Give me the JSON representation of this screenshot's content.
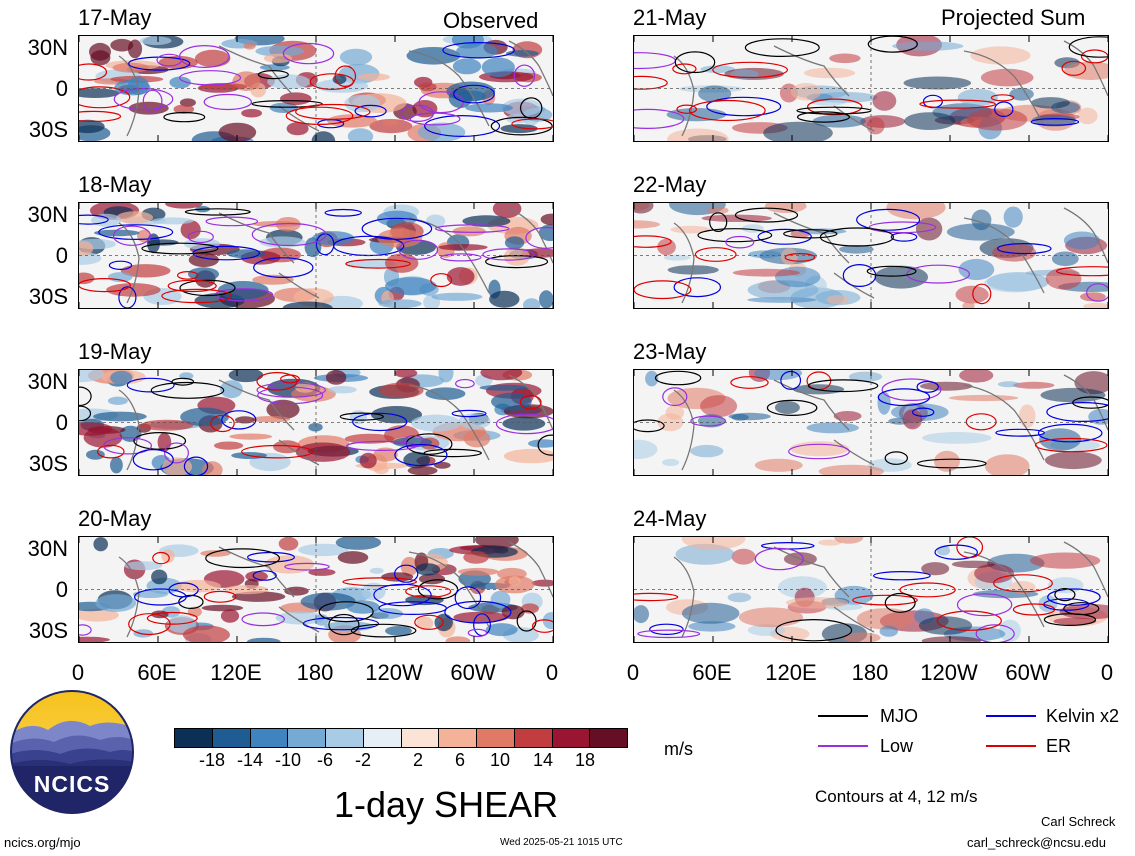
{
  "headers": {
    "observed": "Observed",
    "projected": "Projected Sum"
  },
  "panels": [
    {
      "date": "17-May"
    },
    {
      "date": "18-May"
    },
    {
      "date": "19-May"
    },
    {
      "date": "20-May"
    },
    {
      "date": "21-May"
    },
    {
      "date": "22-May"
    },
    {
      "date": "23-May"
    },
    {
      "date": "24-May"
    }
  ],
  "lat_labels": [
    "30N",
    "0",
    "30S"
  ],
  "lon_labels": [
    "0",
    "60E",
    "120E",
    "180",
    "120W",
    "60W",
    "0"
  ],
  "colorbar": {
    "labels": [
      "-18",
      "-14",
      "-10",
      "-6",
      "-2",
      "2",
      "6",
      "10",
      "14",
      "18"
    ],
    "colors": [
      "#0b2f55",
      "#1f5c93",
      "#3f83bf",
      "#74aad4",
      "#a9cce6",
      "#e6eff6",
      "#fbe3d6",
      "#f4b299",
      "#e07a66",
      "#c23d3f",
      "#9a1531",
      "#660e24"
    ],
    "unit": "m/s"
  },
  "legend": {
    "mjo": {
      "label": "MJO",
      "color": "#000000"
    },
    "kelvin": {
      "label": "Kelvin x2",
      "color": "#0000dd"
    },
    "low": {
      "label": "Low",
      "color": "#9a2fe0"
    },
    "er": {
      "label": "ER",
      "color": "#dd0000"
    }
  },
  "contours_note": "Contours at 4, 12 m/s",
  "main_title": "1-day SHEAR",
  "logo_text": "NCICS",
  "footer": {
    "url": "ncics.org/mjo",
    "timestamp": "Wed 2025-05-21 1015 UTC",
    "author": "Carl Schreck",
    "email": "carl_schreck@ncsu.edu"
  }
}
